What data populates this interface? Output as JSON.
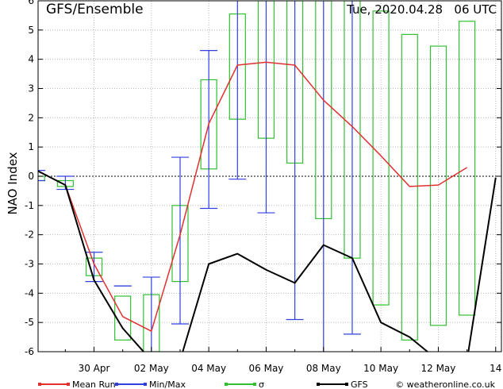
{
  "chart_data": {
    "type": "line",
    "title": "GFS/Ensemble",
    "run_label": "Tue, 2020.04.28   06 UTC",
    "ylabel": "NAO Index",
    "ylim": [
      -6,
      6
    ],
    "y_ticks": [
      -6,
      -5,
      -4,
      -3,
      -2,
      -1,
      0,
      1,
      2,
      3,
      4,
      5,
      6
    ],
    "x_ticks": [
      "30 Apr",
      "02 May",
      "04 May",
      "06 May",
      "08 May",
      "10 May",
      "12 May",
      "14"
    ],
    "x_tick_days": [
      2,
      4,
      6,
      8,
      10,
      12,
      14,
      16
    ],
    "xlim": [
      0.05,
      16.2
    ],
    "grid": true,
    "legend_placement": "bottom",
    "credit": "© weatheronline.co.uk",
    "series": [
      {
        "name": "Mean Run",
        "color": "#e03030",
        "x": [
          0,
          1,
          2,
          3,
          4,
          5,
          6,
          7,
          8,
          9,
          10,
          11,
          12,
          13,
          14,
          15,
          16
        ],
        "y": [
          0.2,
          -0.3,
          -3.0,
          -4.8,
          -5.3,
          -2.0,
          1.8,
          3.8,
          3.9,
          3.8,
          2.6,
          1.7,
          0.7,
          -0.35,
          -0.3,
          0.3,
          null
        ]
      },
      {
        "name": "GFS",
        "color": "#000000",
        "x": [
          0,
          1,
          2,
          3,
          4,
          5,
          6,
          7,
          8,
          9,
          10,
          11,
          12,
          13,
          14,
          15,
          16
        ],
        "y": [
          0.2,
          -0.3,
          -3.55,
          -5.2,
          -8.5,
          -8.5,
          -3.0,
          -2.65,
          -3.2,
          -3.65,
          -2.35,
          -2.8,
          -5.0,
          -5.5,
          -6.3,
          -8.0,
          -0.05
        ]
      }
    ],
    "min_max": {
      "name": "Min/Max",
      "color": "#3040e0",
      "x": [
        0,
        1,
        2,
        3,
        4,
        5,
        6,
        7,
        8,
        9,
        10,
        11
      ],
      "min": [
        -0.15,
        -0.45,
        -3.6,
        -3.75,
        -6.0,
        -5.05,
        -1.1,
        -0.1,
        -1.25,
        -4.9,
        -6.0,
        -5.4
      ],
      "max": [
        0.2,
        0.0,
        -2.6,
        -3.75,
        -3.45,
        0.65,
        4.3,
        6.0,
        6.0,
        6.0,
        6.0,
        6.0
      ]
    },
    "sigma": {
      "name": "σ",
      "color": "#30c030",
      "x": [
        0,
        1,
        2,
        3,
        4,
        5,
        6,
        7,
        8,
        9,
        10,
        11,
        12,
        13,
        14,
        15,
        16
      ],
      "low": [
        -0.15,
        -0.35,
        -3.4,
        -5.6,
        -6.0,
        -3.6,
        0.25,
        1.95,
        1.3,
        0.45,
        -1.45,
        -2.8,
        -4.4,
        -5.6,
        -5.1,
        -4.75,
        null
      ],
      "high": [
        0.0,
        -0.15,
        -2.8,
        -4.1,
        -4.05,
        -1.0,
        3.3,
        5.55,
        6.0,
        6.0,
        6.0,
        6.0,
        5.65,
        4.85,
        4.45,
        5.3,
        null
      ]
    },
    "legend": [
      {
        "label": "Mean Run",
        "color": "#e03030"
      },
      {
        "label": "Min/Max",
        "color": "#3040e0"
      },
      {
        "label": "σ",
        "color": "#30c030"
      },
      {
        "label": "GFS",
        "color": "#000000"
      }
    ]
  }
}
